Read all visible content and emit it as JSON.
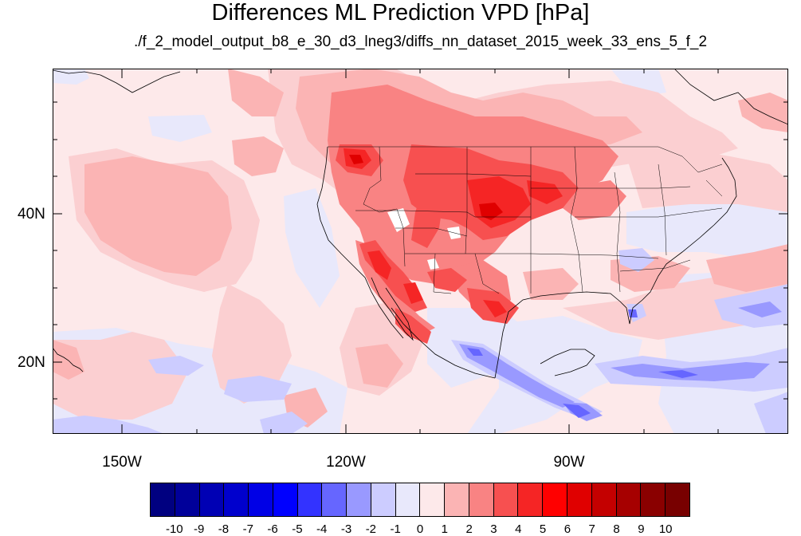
{
  "title": "Differences ML Prediction VPD [hPa]",
  "subtitle": "./f_2_model_output_b8_e_30_d3_lneg3/diffs_nn_dataset_2015_week_33_ens_5_f_2",
  "map": {
    "lat_labels": [
      "40N",
      "20N"
    ],
    "lon_labels": [
      "150W",
      "120W",
      "90W"
    ]
  },
  "colorbar": {
    "labels": [
      "-10",
      "-9",
      "-8",
      "-7",
      "-6",
      "-5",
      "-4",
      "-3",
      "-2",
      "-1",
      "0",
      "1",
      "2",
      "3",
      "4",
      "5",
      "6",
      "7",
      "8",
      "9",
      "10"
    ],
    "colors": [
      "#000080",
      "#00009a",
      "#0000b4",
      "#0000cd",
      "#0000e6",
      "#0000ff",
      "#3333ff",
      "#6666ff",
      "#9999ff",
      "#ccccff",
      "#e8e8fb",
      "#fde9ea",
      "#fbb4b4",
      "#f98383",
      "#f75050",
      "#f52525",
      "#ff0000",
      "#e00000",
      "#c40000",
      "#a60000",
      "#8a0000",
      "#780000"
    ]
  }
}
